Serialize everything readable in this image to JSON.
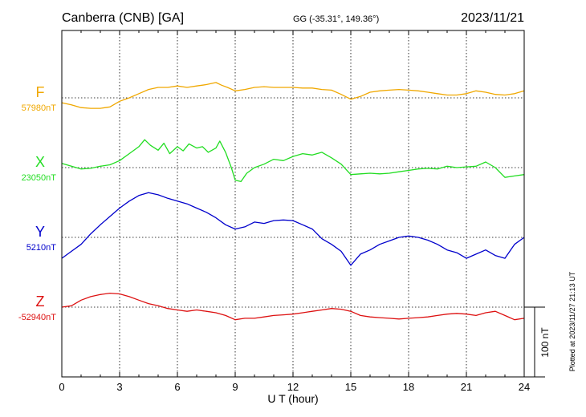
{
  "header": {
    "station": "Canberra (CNB)  [GA]",
    "coords": "GG (-35.31°, 149.36°)",
    "date": "2023/11/21"
  },
  "side_note": "Plotted at 2023/11/27 21:13 UT",
  "chart_data": {
    "type": "line",
    "xlabel": "U T (hour)",
    "xlim": [
      0,
      24
    ],
    "x_ticks": [
      0,
      3,
      6,
      9,
      12,
      15,
      18,
      21,
      24
    ],
    "x_tick_labels": [
      "0",
      "3",
      "6",
      "9",
      "12",
      "15",
      "18",
      "21",
      "24"
    ],
    "grid": true,
    "scale_bar": {
      "value": 100,
      "label": "100 nT"
    },
    "series": [
      {
        "name": "F",
        "baseline_label": "57980nT",
        "baseline": 57980,
        "color": "#f0a800",
        "x": [
          0,
          0.5,
          1,
          1.5,
          2,
          2.5,
          3,
          3.5,
          4,
          4.5,
          5,
          5.5,
          6,
          6.5,
          7,
          7.5,
          8,
          8.3,
          8.6,
          9,
          9.5,
          10,
          10.5,
          11,
          11.5,
          12,
          12.5,
          13,
          13.5,
          14,
          14.5,
          15,
          15.5,
          16,
          16.5,
          17,
          17.5,
          18,
          18.5,
          19,
          19.5,
          20,
          20.5,
          21,
          21.5,
          22,
          22.5,
          23,
          23.5,
          24
        ],
        "y": [
          57973,
          57970,
          57966,
          57965,
          57965,
          57967,
          57975,
          57980,
          57986,
          57992,
          57995,
          57995,
          57997,
          57995,
          57997,
          57999,
          58002,
          57998,
          57995,
          57990,
          57992,
          57995,
          57996,
          57995,
          57995,
          57995,
          57994,
          57994,
          57992,
          57991,
          57985,
          57978,
          57982,
          57988,
          57990,
          57991,
          57992,
          57991,
          57990,
          57988,
          57986,
          57984,
          57984,
          57986,
          57990,
          57988,
          57985,
          57984,
          57986,
          57990
        ]
      },
      {
        "name": "X",
        "baseline_label": "23050nT",
        "baseline": 23050,
        "color": "#22dd22",
        "x": [
          0,
          0.5,
          1,
          1.5,
          2,
          2.5,
          3,
          3.5,
          4,
          4.3,
          4.6,
          5,
          5.3,
          5.6,
          6,
          6.3,
          6.6,
          7,
          7.3,
          7.6,
          8,
          8.2,
          8.5,
          8.8,
          9,
          9.3,
          9.6,
          10,
          10.5,
          11,
          11.5,
          12,
          12.5,
          13,
          13.5,
          14,
          14.5,
          15,
          15.5,
          16,
          16.5,
          17,
          17.5,
          18,
          18.5,
          19,
          19.5,
          20,
          20.5,
          21,
          21.5,
          22,
          22.5,
          23,
          23.5,
          24
        ],
        "y": [
          23056,
          23052,
          23048,
          23049,
          23052,
          23054,
          23060,
          23070,
          23080,
          23090,
          23082,
          23075,
          23085,
          23070,
          23080,
          23074,
          23084,
          23078,
          23080,
          23072,
          23078,
          23088,
          23072,
          23050,
          23032,
          23030,
          23042,
          23050,
          23055,
          23062,
          23060,
          23066,
          23070,
          23068,
          23072,
          23064,
          23055,
          23040,
          23041,
          23042,
          23041,
          23042,
          23044,
          23046,
          23048,
          23049,
          23048,
          23052,
          23050,
          23051,
          23052,
          23058,
          23050,
          23036,
          23038,
          23040
        ]
      },
      {
        "name": "Y",
        "baseline_label": "5210nT",
        "baseline": 5210,
        "color": "#0000cc",
        "x": [
          0,
          0.5,
          1,
          1.5,
          2,
          2.5,
          3,
          3.5,
          4,
          4.5,
          5,
          5.5,
          6,
          6.5,
          7,
          7.5,
          8,
          8.5,
          9,
          9.5,
          10,
          10.5,
          11,
          11.5,
          12,
          12.5,
          13,
          13.5,
          14,
          14.5,
          15,
          15.5,
          16,
          16.5,
          17,
          17.5,
          18,
          18.5,
          19,
          19.5,
          20,
          20.5,
          21,
          21.5,
          22,
          22.5,
          23,
          23.5,
          24
        ],
        "y": [
          5180,
          5190,
          5200,
          5215,
          5228,
          5240,
          5252,
          5262,
          5270,
          5274,
          5271,
          5266,
          5262,
          5258,
          5252,
          5246,
          5238,
          5228,
          5222,
          5225,
          5232,
          5230,
          5234,
          5235,
          5234,
          5228,
          5222,
          5208,
          5200,
          5190,
          5170,
          5186,
          5192,
          5200,
          5205,
          5210,
          5212,
          5210,
          5206,
          5200,
          5192,
          5188,
          5180,
          5186,
          5192,
          5184,
          5180,
          5200,
          5210
        ]
      },
      {
        "name": "Z",
        "baseline_label": "-52940nT",
        "baseline": -52940,
        "color": "#dd1111",
        "x": [
          0,
          0.5,
          1,
          1.5,
          2,
          2.5,
          3,
          3.5,
          4,
          4.5,
          5,
          5.5,
          6,
          6.5,
          7,
          7.5,
          8,
          8.5,
          9,
          9.5,
          10,
          10.5,
          11,
          11.5,
          12,
          12.5,
          13,
          13.5,
          14,
          14.5,
          15,
          15.5,
          16,
          16.5,
          17,
          17.5,
          18,
          18.5,
          19,
          19.5,
          20,
          20.5,
          21,
          21.5,
          22,
          22.5,
          23,
          23.5,
          24
        ],
        "y": [
          -52940,
          -52938,
          -52930,
          -52925,
          -52922,
          -52920,
          -52921,
          -52925,
          -52930,
          -52935,
          -52938,
          -52942,
          -52944,
          -52946,
          -52944,
          -52946,
          -52948,
          -52952,
          -52958,
          -52956,
          -52956,
          -52954,
          -52952,
          -52951,
          -52950,
          -52948,
          -52946,
          -52944,
          -52942,
          -52943,
          -52946,
          -52952,
          -52954,
          -52955,
          -52956,
          -52957,
          -52956,
          -52955,
          -52954,
          -52952,
          -52950,
          -52949,
          -52950,
          -52952,
          -52948,
          -52946,
          -52952,
          -52958,
          -52956
        ]
      }
    ]
  }
}
